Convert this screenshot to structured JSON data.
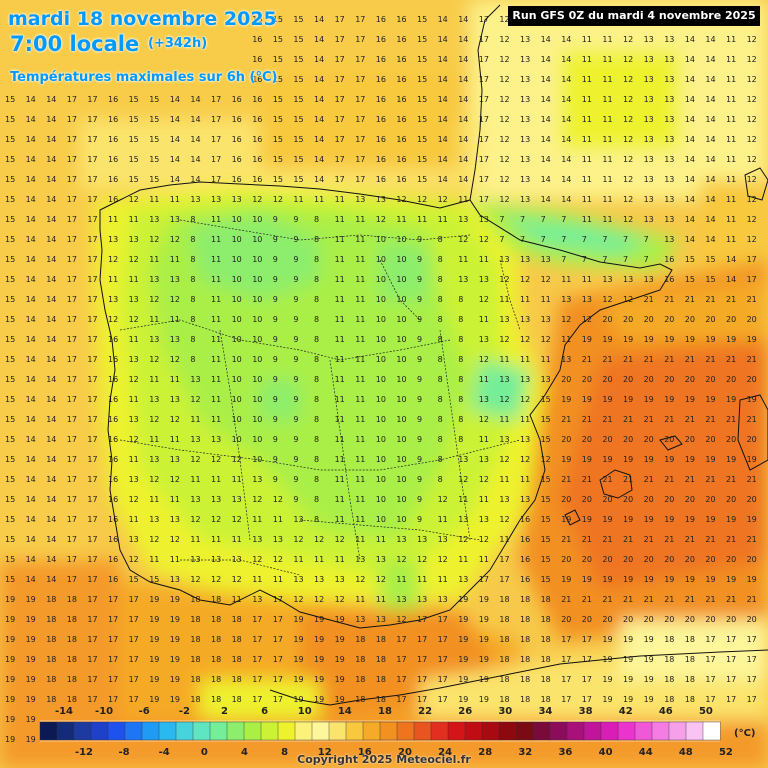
{
  "header": {
    "date": "mardi 18 novembre 2025",
    "local_time": "7:00 locale",
    "offset": "(+342h)",
    "parameter": "Températures maximales sur 6h (°C)",
    "run": "Run GFS 0Z du mardi 4 novembre 2025",
    "copyright": "Copyright 2025 Meteociel.fr"
  },
  "legend": {
    "unit": "(°C)",
    "labels_top": [
      "-14",
      "-10",
      "-6",
      "-2",
      "2",
      "6",
      "10",
      "14",
      "18",
      "22",
      "26",
      "30",
      "34",
      "38",
      "42",
      "46",
      "50"
    ],
    "labels_bottom": [
      "-12",
      "-8",
      "-4",
      "0",
      "4",
      "8",
      "12",
      "16",
      "20",
      "24",
      "28",
      "32",
      "36",
      "40",
      "44",
      "48",
      "52"
    ],
    "swatches": [
      "#0b1a55",
      "#142b7a",
      "#1c3a9f",
      "#1f40c8",
      "#1e52ef",
      "#1f76f5",
      "#1f9bf5",
      "#2ab8ef",
      "#46d3de",
      "#5fe6c0",
      "#74ee98",
      "#8cee6c",
      "#aaef46",
      "#ccf236",
      "#eef22d",
      "#fbf27a",
      "#fdf69a",
      "#fbe46c",
      "#f8c83e",
      "#f5aa28",
      "#f29020",
      "#ef7420",
      "#e95520",
      "#e23020",
      "#d51418",
      "#c00d14",
      "#a80a12",
      "#8e0810",
      "#7a0a14",
      "#7a0a3a",
      "#8c0c5c",
      "#a8107a",
      "#c0159a",
      "#d91eb8",
      "#ea34cc",
      "#f158d8",
      "#f47ce2",
      "#f7a0ea",
      "#fac4f2",
      "#ffffff"
    ]
  },
  "coast_color": "#111111",
  "border_color": "#222222"
}
